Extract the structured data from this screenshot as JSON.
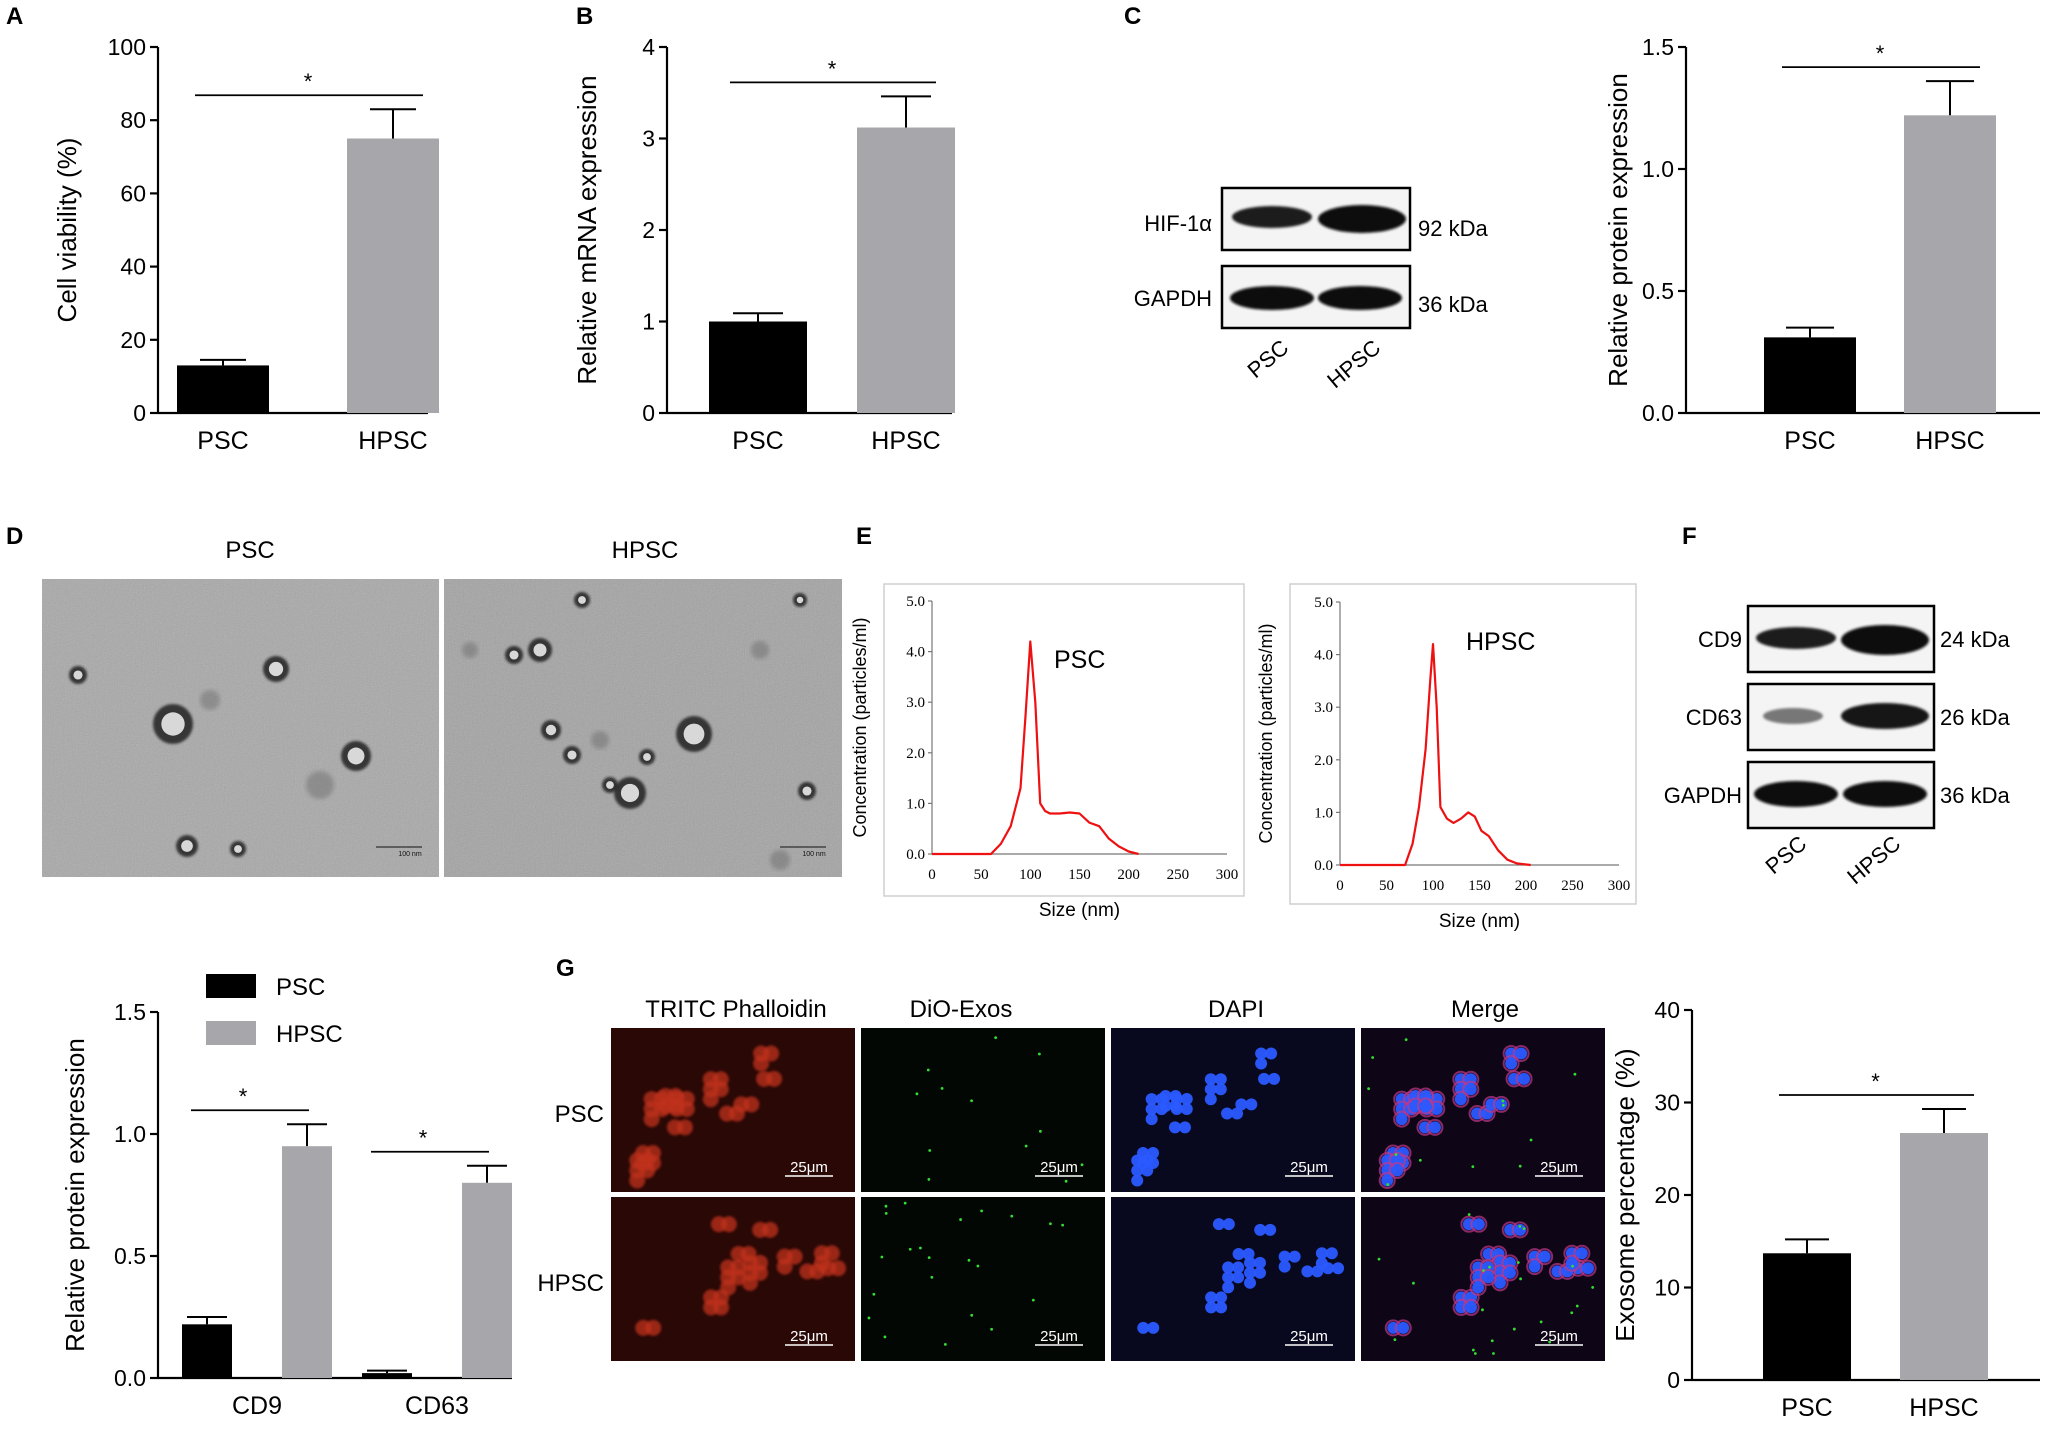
{
  "panels": {
    "A": {
      "letter": "A"
    },
    "B": {
      "letter": "B"
    },
    "C": {
      "letter": "C",
      "blot": {
        "rows": [
          "HIF-1α",
          "GAPDH"
        ],
        "sizes": [
          "92 kDa",
          "36 kDa"
        ],
        "lanes": [
          "PSC",
          "HPSC"
        ]
      }
    },
    "D": {
      "letter": "D",
      "images": [
        "PSC",
        "HPSC"
      ],
      "scale": "100 nm"
    },
    "E": {
      "letter": "E"
    },
    "F": {
      "letter": "F",
      "blot": {
        "rows": [
          "CD9",
          "CD63",
          "GAPDH"
        ],
        "sizes": [
          "24 kDa",
          "26 kDa",
          "36 kDa"
        ],
        "lanes": [
          "PSC",
          "HPSC"
        ]
      }
    },
    "G": {
      "letter": "G",
      "columns": [
        "TRITC Phalloidin",
        "DiO-Exos",
        "DAPI",
        "Merge"
      ],
      "rows": [
        "PSC",
        "HPSC"
      ],
      "scale": "25μm"
    }
  },
  "colors": {
    "psc": "#000000",
    "hpsc": "#a6a6ab",
    "nta_curve": "#ee1111",
    "tritc": "#c0321a",
    "dio": "#33dd33",
    "dapi": "#2a5aff"
  },
  "chart_data": [
    {
      "id": "A",
      "type": "bar",
      "categories": [
        "PSC",
        "HPSC"
      ],
      "values": [
        13,
        75
      ],
      "errors": [
        1.5,
        8
      ],
      "ylabel": "Cell viability (%)",
      "ylim": [
        0,
        100
      ],
      "yticks": [
        "0",
        "20",
        "40",
        "60",
        "80",
        "100"
      ],
      "significance": "*"
    },
    {
      "id": "B",
      "type": "bar",
      "categories": [
        "PSC",
        "HPSC"
      ],
      "values": [
        1.0,
        3.12
      ],
      "errors": [
        0.09,
        0.34
      ],
      "ylabel": "Relative mRNA expression",
      "ylim": [
        0,
        4
      ],
      "yticks": [
        "0",
        "1",
        "2",
        "3",
        "4"
      ],
      "significance": "*"
    },
    {
      "id": "C",
      "type": "bar",
      "categories": [
        "PSC",
        "HPSC"
      ],
      "values": [
        0.31,
        1.22
      ],
      "errors": [
        0.04,
        0.14
      ],
      "ylabel": "Relative protein expression",
      "ylim": [
        0,
        1.5
      ],
      "yticks": [
        "0.0",
        "0.5",
        "1.0",
        "1.5"
      ],
      "significance": "*"
    },
    {
      "id": "E-PSC",
      "type": "line",
      "series_label": "PSC",
      "xlabel": "Size (nm)",
      "ylabel": "Concentration (particles/ml)",
      "xlim": [
        0,
        300
      ],
      "ylim": [
        0,
        5
      ],
      "xticks": [
        "0",
        "50",
        "100",
        "150",
        "200",
        "250",
        "300"
      ],
      "yticks": [
        "0.0",
        "1.0",
        "2.0",
        "3.0",
        "4.0",
        "5.0"
      ],
      "x": [
        0,
        60,
        70,
        80,
        90,
        95,
        100,
        105,
        110,
        115,
        120,
        130,
        140,
        150,
        160,
        170,
        180,
        190,
        200,
        210
      ],
      "y": [
        0,
        0,
        0.2,
        0.55,
        1.3,
        2.7,
        4.2,
        3.0,
        1.0,
        0.85,
        0.8,
        0.8,
        0.82,
        0.8,
        0.62,
        0.55,
        0.3,
        0.15,
        0.05,
        0
      ]
    },
    {
      "id": "E-HPSC",
      "type": "line",
      "series_label": "HPSC",
      "xlabel": "Size (nm)",
      "ylabel": "Concentration (particles/ml)",
      "xlim": [
        0,
        300
      ],
      "ylim": [
        0,
        5
      ],
      "xticks": [
        "0",
        "50",
        "100",
        "150",
        "200",
        "250",
        "300"
      ],
      "yticks": [
        "0.0",
        "1.0",
        "2.0",
        "3.0",
        "4.0",
        "5.0"
      ],
      "x": [
        0,
        70,
        78,
        85,
        92,
        97,
        100,
        104,
        108,
        115,
        122,
        130,
        138,
        145,
        152,
        160,
        170,
        180,
        190,
        205
      ],
      "y": [
        0,
        0,
        0.4,
        1.1,
        2.2,
        3.5,
        4.2,
        3.0,
        1.1,
        0.88,
        0.8,
        0.88,
        1.0,
        0.92,
        0.65,
        0.55,
        0.28,
        0.1,
        0.03,
        0
      ]
    },
    {
      "id": "F",
      "type": "bar",
      "categories": [
        "CD9",
        "CD63"
      ],
      "series": [
        {
          "name": "PSC",
          "values": [
            0.22,
            0.02
          ],
          "errors": [
            0.03,
            0.01
          ]
        },
        {
          "name": "HPSC",
          "values": [
            0.95,
            0.8
          ],
          "errors": [
            0.09,
            0.07
          ]
        }
      ],
      "ylabel": "Relative protein expression",
      "ylim": [
        0,
        1.5
      ],
      "yticks": [
        "0.0",
        "0.5",
        "1.0",
        "1.5"
      ],
      "significance": "*",
      "legend": "top-left"
    },
    {
      "id": "G",
      "type": "bar",
      "categories": [
        "PSC",
        "HPSC"
      ],
      "values": [
        13.7,
        26.7
      ],
      "errors": [
        1.5,
        2.6
      ],
      "ylabel": "Exosome percentage (%)",
      "ylim": [
        0,
        40
      ],
      "yticks": [
        "0",
        "10",
        "20",
        "30",
        "40"
      ],
      "significance": "*"
    }
  ]
}
